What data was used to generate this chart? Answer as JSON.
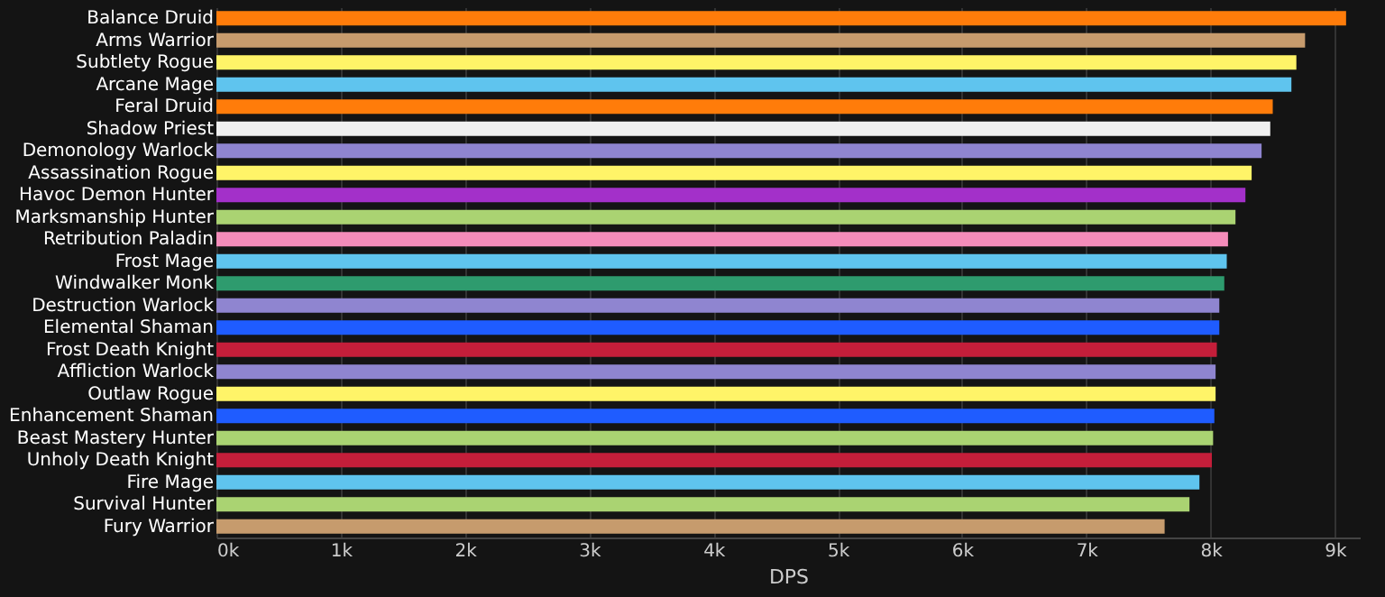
{
  "chart_data": {
    "type": "bar",
    "orientation": "horizontal",
    "xlabel": "DPS",
    "categories": [
      "Balance Druid",
      "Arms Warrior",
      "Subtlety Rogue",
      "Arcane Mage",
      "Feral Druid",
      "Shadow Priest",
      "Demonology Warlock",
      "Assassination Rogue",
      "Havoc Demon Hunter",
      "Marksmanship Hunter",
      "Retribution Paladin",
      "Frost Mage",
      "Windwalker Monk",
      "Destruction Warlock",
      "Elemental Shaman",
      "Frost Death Knight",
      "Affliction Warlock",
      "Outlaw Rogue",
      "Enhancement Shaman",
      "Beast Mastery Hunter",
      "Unholy Death Knight",
      "Fire Mage",
      "Survival Hunter",
      "Fury Warrior"
    ],
    "values": [
      9090,
      8760,
      8690,
      8650,
      8500,
      8480,
      8410,
      8330,
      8280,
      8200,
      8140,
      8130,
      8110,
      8070,
      8070,
      8050,
      8040,
      8040,
      8030,
      8020,
      8010,
      7910,
      7830,
      7630
    ],
    "colors": [
      "#ff7c0a",
      "#c69b6d",
      "#fff468",
      "#5fc4ee",
      "#ff7c0a",
      "#f0f0f0",
      "#8f85d0",
      "#fff468",
      "#a330c9",
      "#aad372",
      "#f48cba",
      "#5fc4ee",
      "#2e9b6e",
      "#8f85d0",
      "#1f5cff",
      "#c41e3a",
      "#8f85d0",
      "#fff468",
      "#1f5cff",
      "#aad372",
      "#c41e3a",
      "#5fc4ee",
      "#aad372",
      "#c69b6d"
    ],
    "xlim": [
      0,
      9200
    ],
    "xticks": [
      {
        "value": 0,
        "label": "0k"
      },
      {
        "value": 1000,
        "label": "1k"
      },
      {
        "value": 2000,
        "label": "2k"
      },
      {
        "value": 3000,
        "label": "3k"
      },
      {
        "value": 4000,
        "label": "4k"
      },
      {
        "value": 5000,
        "label": "5k"
      },
      {
        "value": 6000,
        "label": "6k"
      },
      {
        "value": 7000,
        "label": "7k"
      },
      {
        "value": 8000,
        "label": "8k"
      },
      {
        "value": 9000,
        "label": "9k"
      }
    ],
    "grid": "x",
    "legend": false
  }
}
